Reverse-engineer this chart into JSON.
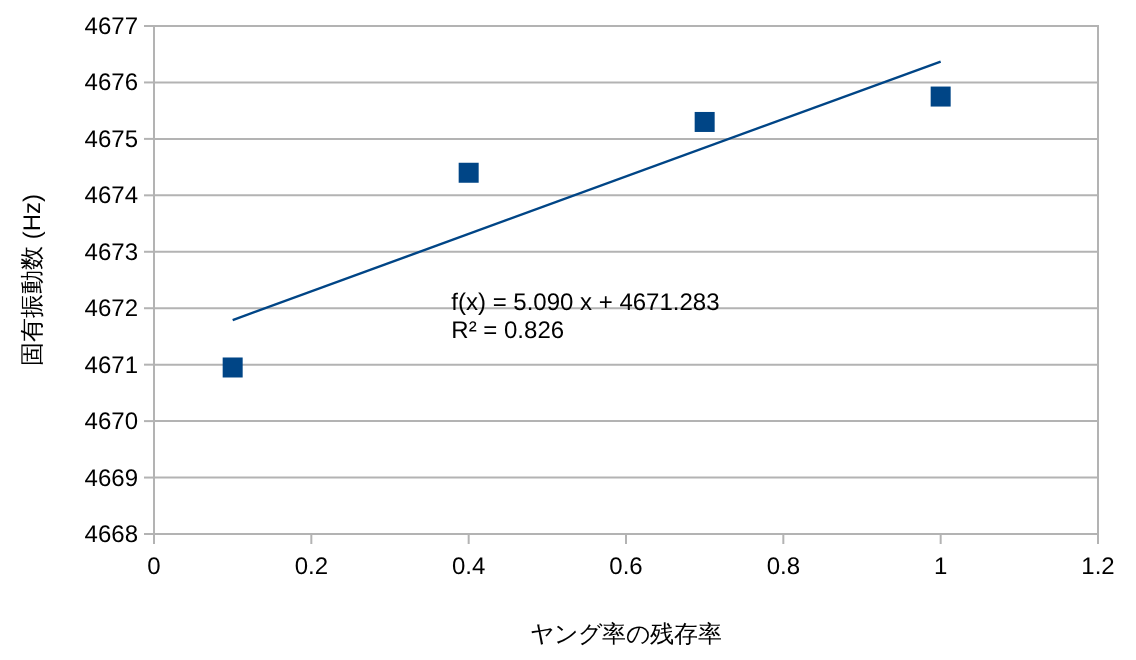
{
  "chart_data": {
    "type": "scatter",
    "xlabel": "ヤング率の残存率",
    "ylabel": "固有振動数 (Hz)",
    "xlim": [
      0,
      1.2
    ],
    "xticks": [
      0,
      0.2,
      0.4,
      0.6,
      0.8,
      1,
      1.2
    ],
    "ylim": [
      4668,
      4677
    ],
    "yticks": [
      4668,
      4669,
      4670,
      4671,
      4672,
      4673,
      4674,
      4675,
      4676,
      4677
    ],
    "grid": "y",
    "marker": "square",
    "series": [
      {
        "color": "#004586",
        "x": [
          0.1,
          0.4,
          0.7,
          1.0
        ],
        "values": [
          4670.95,
          4674.4,
          4675.3,
          4675.75
        ]
      },
      {
        "type": "line",
        "marker": "none",
        "line_style": "solid",
        "color": "#004586",
        "x": [
          0.1,
          1.0
        ],
        "values": [
          4671.79,
          4676.37
        ]
      }
    ],
    "annotations": [
      "f(x) = 5.090 x + 4671.283",
      "R² = 0.826"
    ]
  }
}
